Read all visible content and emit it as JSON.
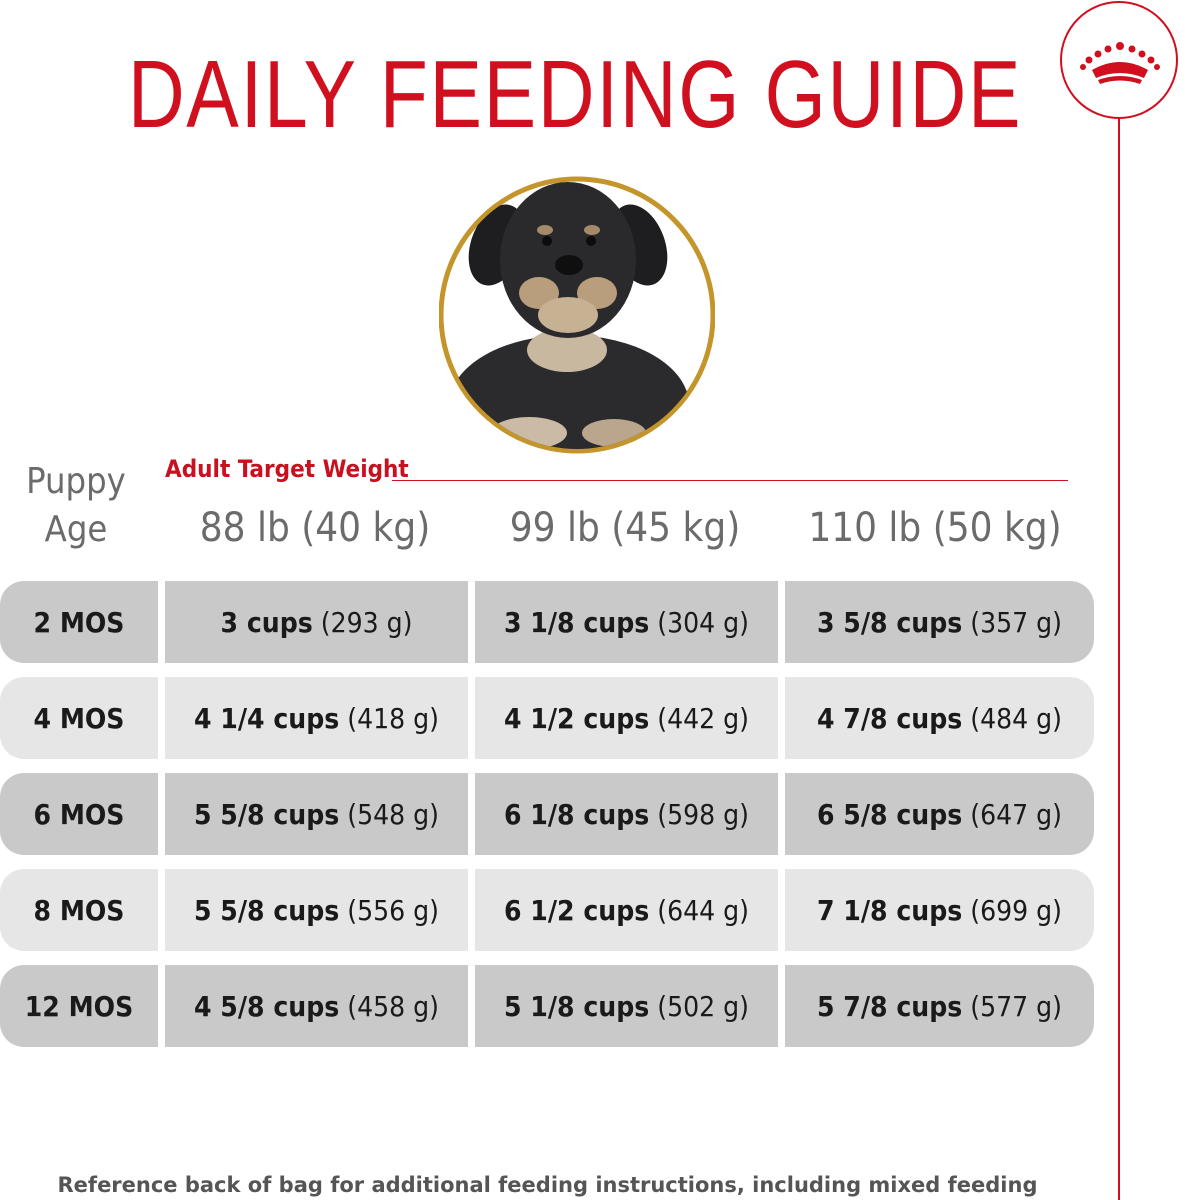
{
  "title": "DAILY FEEDING GUIDE",
  "brand_color": "#d0101f",
  "header": {
    "age_label_line1": "Puppy",
    "age_label_line2": "Age",
    "target_label": "Adult Target Weight",
    "columns": [
      "88 lb (40 kg)",
      "99 lb (45 kg)",
      "110 lb (50 kg)"
    ]
  },
  "rows": [
    {
      "age": "2 MOS",
      "cells": [
        {
          "cups": "3 cups",
          "grams": "(293 g)"
        },
        {
          "cups": "3 1/8 cups",
          "grams": "(304 g)"
        },
        {
          "cups": "3 5/8 cups",
          "grams": "(357 g)"
        }
      ]
    },
    {
      "age": "4 MOS",
      "cells": [
        {
          "cups": "4 1/4 cups",
          "grams": "(418 g)"
        },
        {
          "cups": "4 1/2 cups",
          "grams": "(442 g)"
        },
        {
          "cups": "4 7/8 cups",
          "grams": "(484 g)"
        }
      ]
    },
    {
      "age": "6 MOS",
      "cells": [
        {
          "cups": "5 5/8 cups",
          "grams": "(548 g)"
        },
        {
          "cups": "6 1/8 cups",
          "grams": "(598 g)"
        },
        {
          "cups": "6 5/8 cups",
          "grams": "(647 g)"
        }
      ]
    },
    {
      "age": "8 MOS",
      "cells": [
        {
          "cups": "5 5/8 cups",
          "grams": "(556 g)"
        },
        {
          "cups": "6 1/2 cups",
          "grams": "(644 g)"
        },
        {
          "cups": "7 1/8 cups",
          "grams": "(699 g)"
        }
      ]
    },
    {
      "age": "12 MOS",
      "cells": [
        {
          "cups": "4 5/8 cups",
          "grams": "(458 g)"
        },
        {
          "cups": "5 1/8 cups",
          "grams": "(502 g)"
        },
        {
          "cups": "5 7/8 cups",
          "grams": "(577 g)"
        }
      ]
    }
  ],
  "footer": "Reference back of bag for additional feeding instructions, including mixed feeding"
}
